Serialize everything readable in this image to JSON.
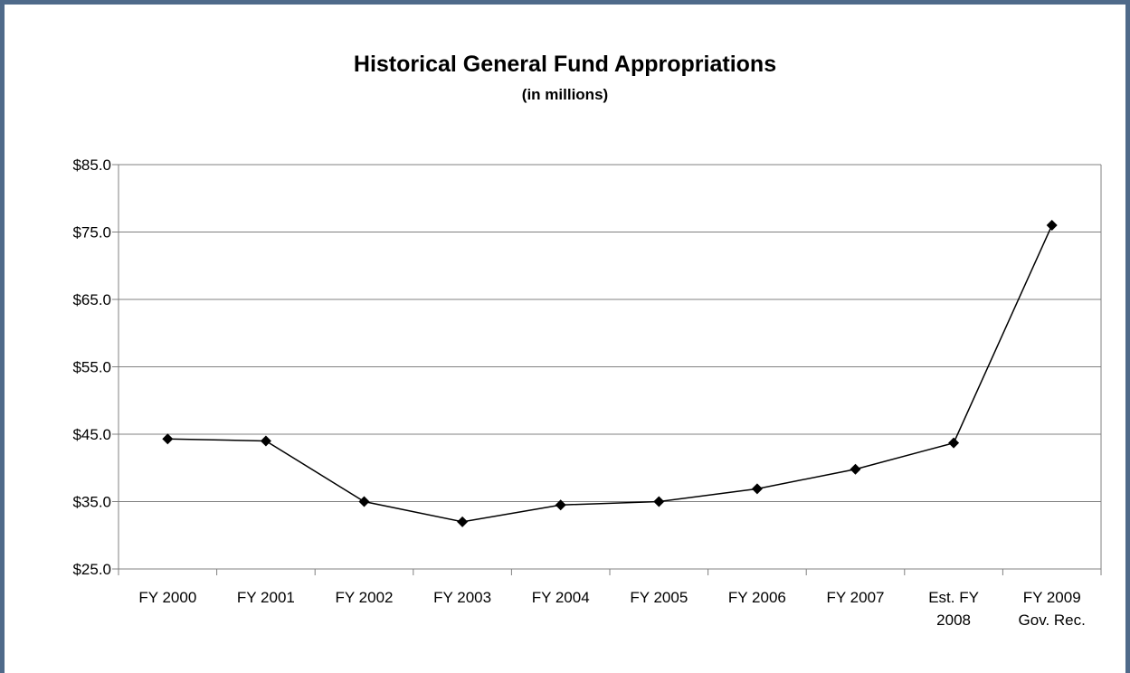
{
  "chart_data": {
    "type": "line",
    "title": "Historical General Fund Appropriations",
    "subtitle": "(in millions)",
    "xlabel": "",
    "ylabel": "",
    "categories": [
      [
        "FY 2000"
      ],
      [
        "FY 2001"
      ],
      [
        "FY 2002"
      ],
      [
        "FY 2003"
      ],
      [
        "FY 2004"
      ],
      [
        "FY 2005"
      ],
      [
        "FY 2006"
      ],
      [
        "FY 2007"
      ],
      [
        "Est. FY",
        "2008"
      ],
      [
        "FY 2009",
        "Gov. Rec."
      ]
    ],
    "series": [
      {
        "values": [
          44.3,
          44.0,
          35.0,
          32.0,
          34.5,
          35.0,
          36.9,
          39.8,
          43.7,
          76.0
        ],
        "color": "#000000",
        "marker": "diamond"
      }
    ],
    "ylim": [
      25,
      85
    ],
    "yticks": [
      25,
      35,
      45,
      55,
      65,
      75,
      85
    ],
    "ytick_labels": [
      "$25.0",
      "$35.0",
      "$45.0",
      "$55.0",
      "$65.0",
      "$75.0",
      "$85.0"
    ],
    "grid": true,
    "legend": "none"
  }
}
